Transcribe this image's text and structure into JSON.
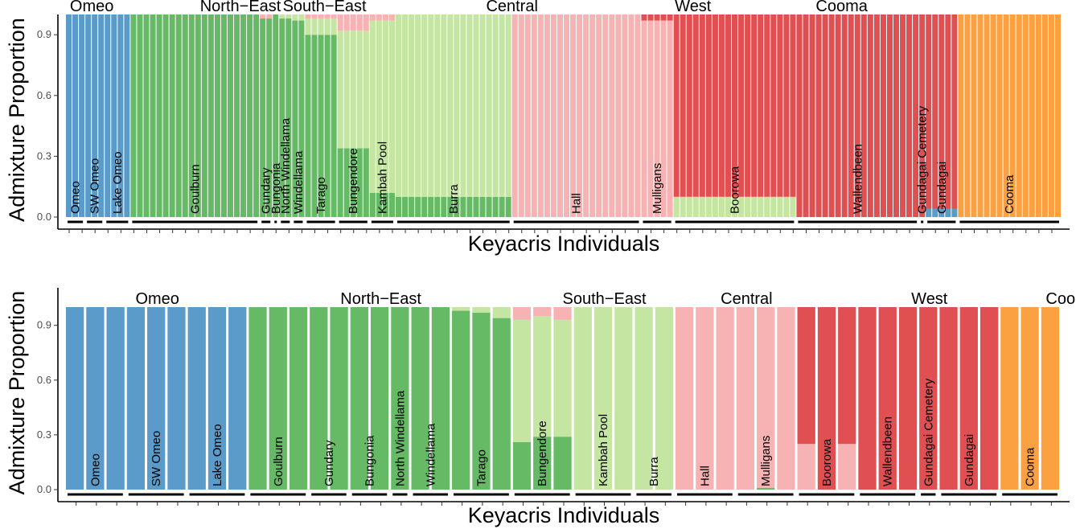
{
  "colors": {
    "Omeo": "#5a9bc9",
    "North-East": "#66b965",
    "South-East": "#c5e6a3",
    "Central": "#f7b3b3",
    "West": "#e05053",
    "Cooma": "#fca142"
  },
  "chart_data": [
    {
      "type": "stacked-bar",
      "ylabel": "Admixture Proportion",
      "xlabel": "Keyacris Individuals",
      "ylim": [
        0,
        1
      ],
      "yticks": [
        "0.0",
        "0.3",
        "0.6",
        "0.9"
      ],
      "clusters": [
        "Omeo",
        "North-East",
        "South-East",
        "Central",
        "West",
        "Cooma"
      ],
      "regions": [
        {
          "label": "Omeo",
          "x": 4
        },
        {
          "label": "North−East",
          "x": 27
        },
        {
          "label": "South−East",
          "x": 40
        },
        {
          "label": "Central",
          "x": 69
        },
        {
          "label": "West",
          "x": 97
        },
        {
          "label": "Cooma",
          "x": 120
        }
      ],
      "populations": [
        {
          "name": "Omeo",
          "n": 3,
          "profile": {
            "Omeo": 1
          }
        },
        {
          "name": "SW Omeo",
          "n": 3,
          "profile": {
            "Omeo": 1
          }
        },
        {
          "name": "Lake Omeo",
          "n": 4,
          "profile": {
            "Omeo": 1
          }
        },
        {
          "name": "Goulburn",
          "n": 20,
          "profile": {
            "North-East": 1
          }
        },
        {
          "name": "Gundary",
          "n": 2,
          "profile": {
            "North-East": 0.98,
            "Central": 0.02
          }
        },
        {
          "name": "Bungonia",
          "n": 1,
          "profile": {
            "North-East": 1
          }
        },
        {
          "name": "North Windellama",
          "n": 2,
          "profile": {
            "North-East": 0.98,
            "South-East": 0.02
          }
        },
        {
          "name": "Windellama",
          "n": 2,
          "profile": {
            "North-East": 0.97,
            "South-East": 0.03
          }
        },
        {
          "name": "Tarago",
          "n": 5,
          "profile": {
            "North-East": 0.9,
            "South-East": 0.08,
            "Central": 0.02
          }
        },
        {
          "name": "Bungendore",
          "n": 5,
          "profile": {
            "South-East": 0.58,
            "Central": 0.08,
            "North-East": 0.34
          }
        },
        {
          "name": "Kambah Pool",
          "n": 4,
          "profile": {
            "South-East": 0.85,
            "Central": 0.03,
            "North-East": 0.12
          }
        },
        {
          "name": "Burra",
          "n": 18,
          "profile": {
            "South-East": 0.9,
            "North-East": 0.1
          }
        },
        {
          "name": "Hall",
          "n": 20,
          "profile": {
            "Central": 1
          }
        },
        {
          "name": "Mulligans",
          "n": 5,
          "profile": {
            "Central": 0.97,
            "West": 0.03
          }
        },
        {
          "name": "Boorowa",
          "n": 19,
          "profile": {
            "South-East": 0.1,
            "West": 0.9
          }
        },
        {
          "name": "Wallendbeen",
          "n": 19,
          "profile": {
            "West": 1
          }
        },
        {
          "name": "Gundagai Cemetery",
          "n": 1,
          "profile": {
            "West": 1
          }
        },
        {
          "name": "Gundagai",
          "n": 5,
          "profile": {
            "Omeo": 0.04,
            "West": 0.96
          }
        },
        {
          "name": "Cooma",
          "n": 16,
          "profile": {
            "Cooma": 1
          }
        }
      ]
    },
    {
      "type": "stacked-bar",
      "ylabel": "Admixture Proportion",
      "xlabel": "Keyacris Individuals",
      "ylim": [
        0,
        1
      ],
      "yticks": [
        "0.0",
        "0.3",
        "0.6",
        "0.9"
      ],
      "clusters": [
        "Omeo",
        "North-East",
        "South-East",
        "Central",
        "West",
        "Cooma"
      ],
      "regions": [
        {
          "label": "Omeo",
          "x": 4.5
        },
        {
          "label": "North−East",
          "x": 15.5
        },
        {
          "label": "South−East",
          "x": 26.5
        },
        {
          "label": "Central",
          "x": 33.5
        },
        {
          "label": "West",
          "x": 42.5
        },
        {
          "label": "Cooma",
          "x": 49.5
        }
      ],
      "populations": [
        {
          "name": "Omeo",
          "values": [
            {
              "Omeo": 1
            },
            {
              "Omeo": 1
            },
            {
              "Omeo": 1
            }
          ]
        },
        {
          "name": "SW Omeo",
          "values": [
            {
              "Omeo": 1
            },
            {
              "Omeo": 1
            },
            {
              "Omeo": 1
            }
          ]
        },
        {
          "name": "Lake Omeo",
          "values": [
            {
              "Omeo": 1
            },
            {
              "Omeo": 1
            },
            {
              "Omeo": 1
            }
          ]
        },
        {
          "name": "Goulburn",
          "values": [
            {
              "North-East": 1
            },
            {
              "North-East": 1
            },
            {
              "North-East": 1
            }
          ]
        },
        {
          "name": "Gundary",
          "values": [
            {
              "North-East": 1
            },
            {
              "North-East": 1
            }
          ]
        },
        {
          "name": "Bungonia",
          "values": [
            {
              "North-East": 1
            },
            {
              "North-East": 1
            }
          ]
        },
        {
          "name": "North Windellama",
          "values": [
            {
              "North-East": 1
            }
          ]
        },
        {
          "name": "Windellama",
          "values": [
            {
              "North-East": 1
            },
            {
              "North-East": 1
            }
          ]
        },
        {
          "name": "Tarago",
          "values": [
            {
              "South-East": 0.02,
              "North-East": 0.98
            },
            {
              "South-East": 0.03,
              "North-East": 0.97
            },
            {
              "South-East": 0.06,
              "North-East": 0.94
            }
          ]
        },
        {
          "name": "Bungendore",
          "values": [
            {
              "Central": 0.07,
              "South-East": 0.67,
              "North-East": 0.26
            },
            {
              "Central": 0.05,
              "South-East": 0.66,
              "North-East": 0.29
            },
            {
              "Central": 0.07,
              "South-East": 0.64,
              "North-East": 0.29
            }
          ]
        },
        {
          "name": "Kambah Pool",
          "values": [
            {
              "South-East": 1
            },
            {
              "South-East": 1
            },
            {
              "South-East": 1
            }
          ]
        },
        {
          "name": "Burra",
          "values": [
            {
              "South-East": 1
            },
            {
              "South-East": 1
            }
          ]
        },
        {
          "name": "Hall",
          "values": [
            {
              "Central": 1
            },
            {
              "Central": 1
            },
            {
              "Central": 1
            }
          ]
        },
        {
          "name": "Mulligans",
          "values": [
            {
              "Central": 1
            },
            {
              "Central": 0.99,
              "North-East": 0.01
            },
            {
              "Central": 1
            }
          ]
        },
        {
          "name": "Boorowa",
          "values": [
            {
              "Central": 0.25,
              "West": 0.75
            },
            {
              "West": 1
            },
            {
              "Central": 0.25,
              "West": 0.75
            }
          ]
        },
        {
          "name": "Wallendbeen",
          "values": [
            {
              "West": 1
            },
            {
              "West": 1
            },
            {
              "West": 1
            }
          ]
        },
        {
          "name": "Gundagai Cemetery",
          "values": [
            {
              "West": 1
            }
          ]
        },
        {
          "name": "Gundagai",
          "values": [
            {
              "West": 1
            },
            {
              "West": 1
            },
            {
              "West": 1
            }
          ]
        },
        {
          "name": "Cooma",
          "values": [
            {
              "Cooma": 1
            },
            {
              "Cooma": 1
            },
            {
              "Cooma": 1
            }
          ]
        }
      ]
    }
  ]
}
